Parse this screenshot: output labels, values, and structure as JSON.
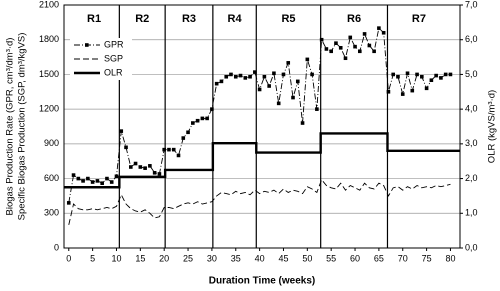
{
  "chart_data": {
    "type": "line",
    "x_label": "Duration Time (weeks)",
    "y_label": [
      "Biogas Production Rate (GPR, cm³/dm³·d)",
      "Specific Biogas Production (SGP, dm³/kgVS)"
    ],
    "y2_label": "OLR  (kgVS/m³·d)",
    "xlim": [
      -1,
      82
    ],
    "xticks": [
      0,
      5,
      10,
      15,
      20,
      25,
      30,
      35,
      40,
      45,
      50,
      55,
      60,
      65,
      70,
      75,
      80
    ],
    "ylim": [
      0,
      2100
    ],
    "yticks": [
      0,
      300,
      600,
      900,
      1200,
      1500,
      1800,
      2100
    ],
    "y2lim": [
      0,
      7
    ],
    "y2ticks": [
      {
        "value": 0,
        "label": "0,0"
      },
      {
        "value": 1,
        "label": "1,0"
      },
      {
        "value": 2,
        "label": "2,0"
      },
      {
        "value": 3,
        "label": "3,0"
      },
      {
        "value": 4,
        "label": "4,0"
      },
      {
        "value": 5,
        "label": "5,0"
      },
      {
        "value": 6,
        "label": "6,0"
      },
      {
        "value": 7,
        "label": "7,0"
      }
    ],
    "grid": true,
    "legend": "upper left",
    "phases": [
      {
        "label": "R1",
        "start": -1,
        "end": 10.6
      },
      {
        "label": "R2",
        "start": 10.6,
        "end": 20.2
      },
      {
        "label": "R3",
        "start": 20.2,
        "end": 30.2
      },
      {
        "label": "R4",
        "start": 30.2,
        "end": 39.3
      },
      {
        "label": "R5",
        "start": 39.3,
        "end": 52.8
      },
      {
        "label": "R6",
        "start": 52.8,
        "end": 66.8
      },
      {
        "label": "R7",
        "start": 66.8,
        "end": 82
      }
    ],
    "x": [
      0,
      1,
      2,
      3,
      4,
      5,
      6,
      7,
      8,
      9,
      10,
      11,
      12,
      13,
      14,
      15,
      16,
      17,
      18,
      19,
      20,
      21,
      22,
      23,
      24,
      25,
      26,
      27,
      28,
      29,
      30,
      31,
      32,
      33,
      34,
      35,
      36,
      37,
      38,
      39,
      40,
      41,
      42,
      43,
      44,
      45,
      46,
      47,
      48,
      49,
      50,
      51,
      52,
      53,
      54,
      55,
      56,
      57,
      58,
      59,
      60,
      61,
      62,
      63,
      64,
      65,
      66,
      67,
      68,
      69,
      70,
      71,
      72,
      73,
      74,
      75,
      76,
      77,
      78,
      79,
      80
    ],
    "series": [
      {
        "name": "GPR",
        "color": "#000000",
        "style": "dashdot-square",
        "values": [
          390,
          630,
          600,
          580,
          600,
          570,
          580,
          560,
          600,
          570,
          620,
          1010,
          870,
          700,
          730,
          700,
          690,
          710,
          650,
          640,
          850,
          850,
          850,
          800,
          950,
          1000,
          1080,
          1100,
          1120,
          1120,
          1200,
          1420,
          1440,
          1480,
          1500,
          1480,
          1490,
          1470,
          1480,
          1520,
          1370,
          1480,
          1400,
          1510,
          1250,
          1500,
          1600,
          1300,
          1440,
          1080,
          1630,
          1500,
          1200,
          1800,
          1720,
          1700,
          1770,
          1730,
          1640,
          1820,
          1740,
          1700,
          1850,
          1750,
          1700,
          1900,
          1860,
          1350,
          1500,
          1480,
          1330,
          1510,
          1360,
          1500,
          1480,
          1380,
          1450,
          1490,
          1470,
          1500,
          1500
        ]
      },
      {
        "name": "SGP",
        "color": "#000000",
        "style": "dashed",
        "values": [
          200,
          380,
          340,
          330,
          330,
          340,
          330,
          340,
          350,
          340,
          360,
          460,
          380,
          340,
          320,
          310,
          330,
          300,
          260,
          270,
          350,
          350,
          340,
          360,
          380,
          390,
          380,
          400,
          380,
          390,
          400,
          450,
          480,
          470,
          460,
          490,
          470,
          480,
          460,
          500,
          470,
          490,
          480,
          500,
          470,
          510,
          480,
          500,
          490,
          470,
          530,
          510,
          480,
          590,
          540,
          520,
          510,
          560,
          500,
          540,
          520,
          500,
          560,
          520,
          510,
          560,
          540,
          450,
          520,
          530,
          500,
          530,
          510,
          540,
          520,
          530,
          520,
          540,
          530,
          540,
          550
        ]
      },
      {
        "name": "OLR",
        "color": "#000000",
        "style": "solid-thick",
        "axis": "y2",
        "x": [
          -1,
          10.6,
          10.6,
          20.2,
          20.2,
          30.2,
          30.2,
          39.3,
          39.3,
          52.8,
          52.8,
          66.8,
          66.8,
          82
        ],
        "values": [
          1.75,
          1.75,
          2.05,
          2.05,
          2.25,
          2.25,
          3.02,
          3.02,
          2.75,
          2.75,
          3.3,
          3.3,
          2.8,
          2.8
        ]
      }
    ]
  }
}
